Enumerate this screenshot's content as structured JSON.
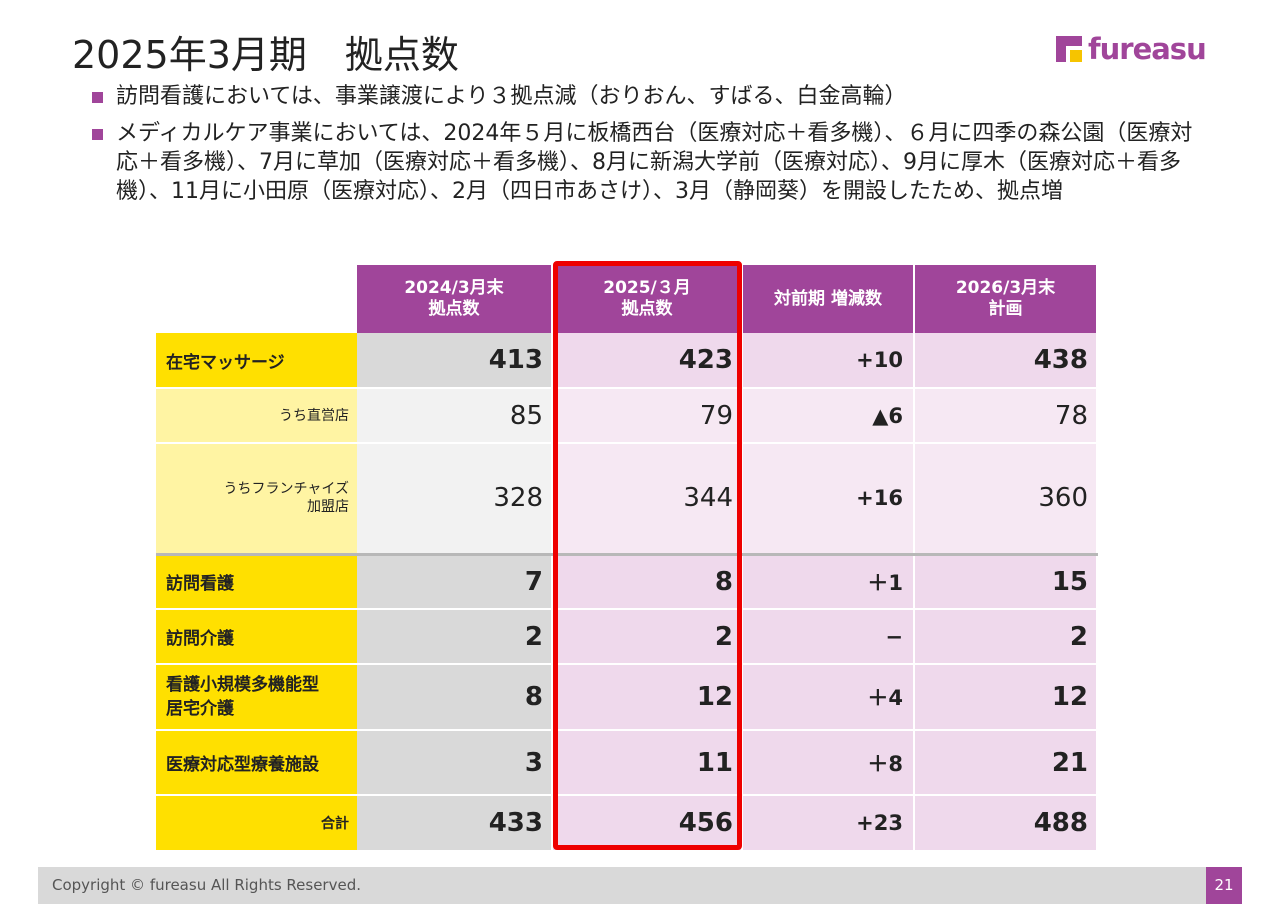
{
  "title": "2025年3月期　拠点数",
  "logo": {
    "text": "fureasu"
  },
  "bullets": [
    "訪問看護においては、事業譲渡により３拠点減（おりおん、すばる、白金高輪）",
    "メディカルケア事業においては、2024年５月に板橋西台（医療対応＋看多機）、６月に四季の森公園（医療対応＋看多機）、7月に草加（医療対応＋看多機）、8月に新潟大学前（医療対応）、9月に厚木（医療対応＋看多機）、11月に小田原（医療対応）、2月（四日市あさけ）、3月（静岡葵）を開設したため、拠点増"
  ],
  "table": {
    "headers": [
      "2024/3月末\n拠点数",
      "2025/３月\n拠点数",
      "対前期 増減数",
      "2026/3月末\n計画"
    ],
    "rows": [
      {
        "label": "在宅マッサージ",
        "v2024": "413",
        "v2025": "423",
        "diff": "+10",
        "plan": "438"
      },
      {
        "label": "うち直営店",
        "v2024": "85",
        "v2025": "79",
        "diff": "▲6",
        "plan": "78"
      },
      {
        "label": "うちフランチャイズ\n加盟店",
        "v2024": "328",
        "v2025": "344",
        "diff": "+16",
        "plan": "360"
      },
      {
        "label": "訪問看護",
        "v2024": "7",
        "v2025": "8",
        "diff": "＋1",
        "plan": "15"
      },
      {
        "label": "訪問介護",
        "v2024": "2",
        "v2025": "2",
        "diff": "−",
        "plan": "2"
      },
      {
        "label": "看護小規模多機能型\n居宅介護",
        "v2024": "8",
        "v2025": "12",
        "diff": "＋4",
        "plan": "12"
      },
      {
        "label": "医療対応型療養施設",
        "v2024": "3",
        "v2025": "11",
        "diff": "＋8",
        "plan": "21"
      },
      {
        "label": "合計",
        "v2024": "433",
        "v2025": "456",
        "diff": "+23",
        "plan": "488"
      }
    ]
  },
  "highlight_color": "#ee0000",
  "brand_color": "#a0459a",
  "footer": {
    "copyright": "Copyright © fureasu All Rights Reserved.",
    "page": "21"
  }
}
